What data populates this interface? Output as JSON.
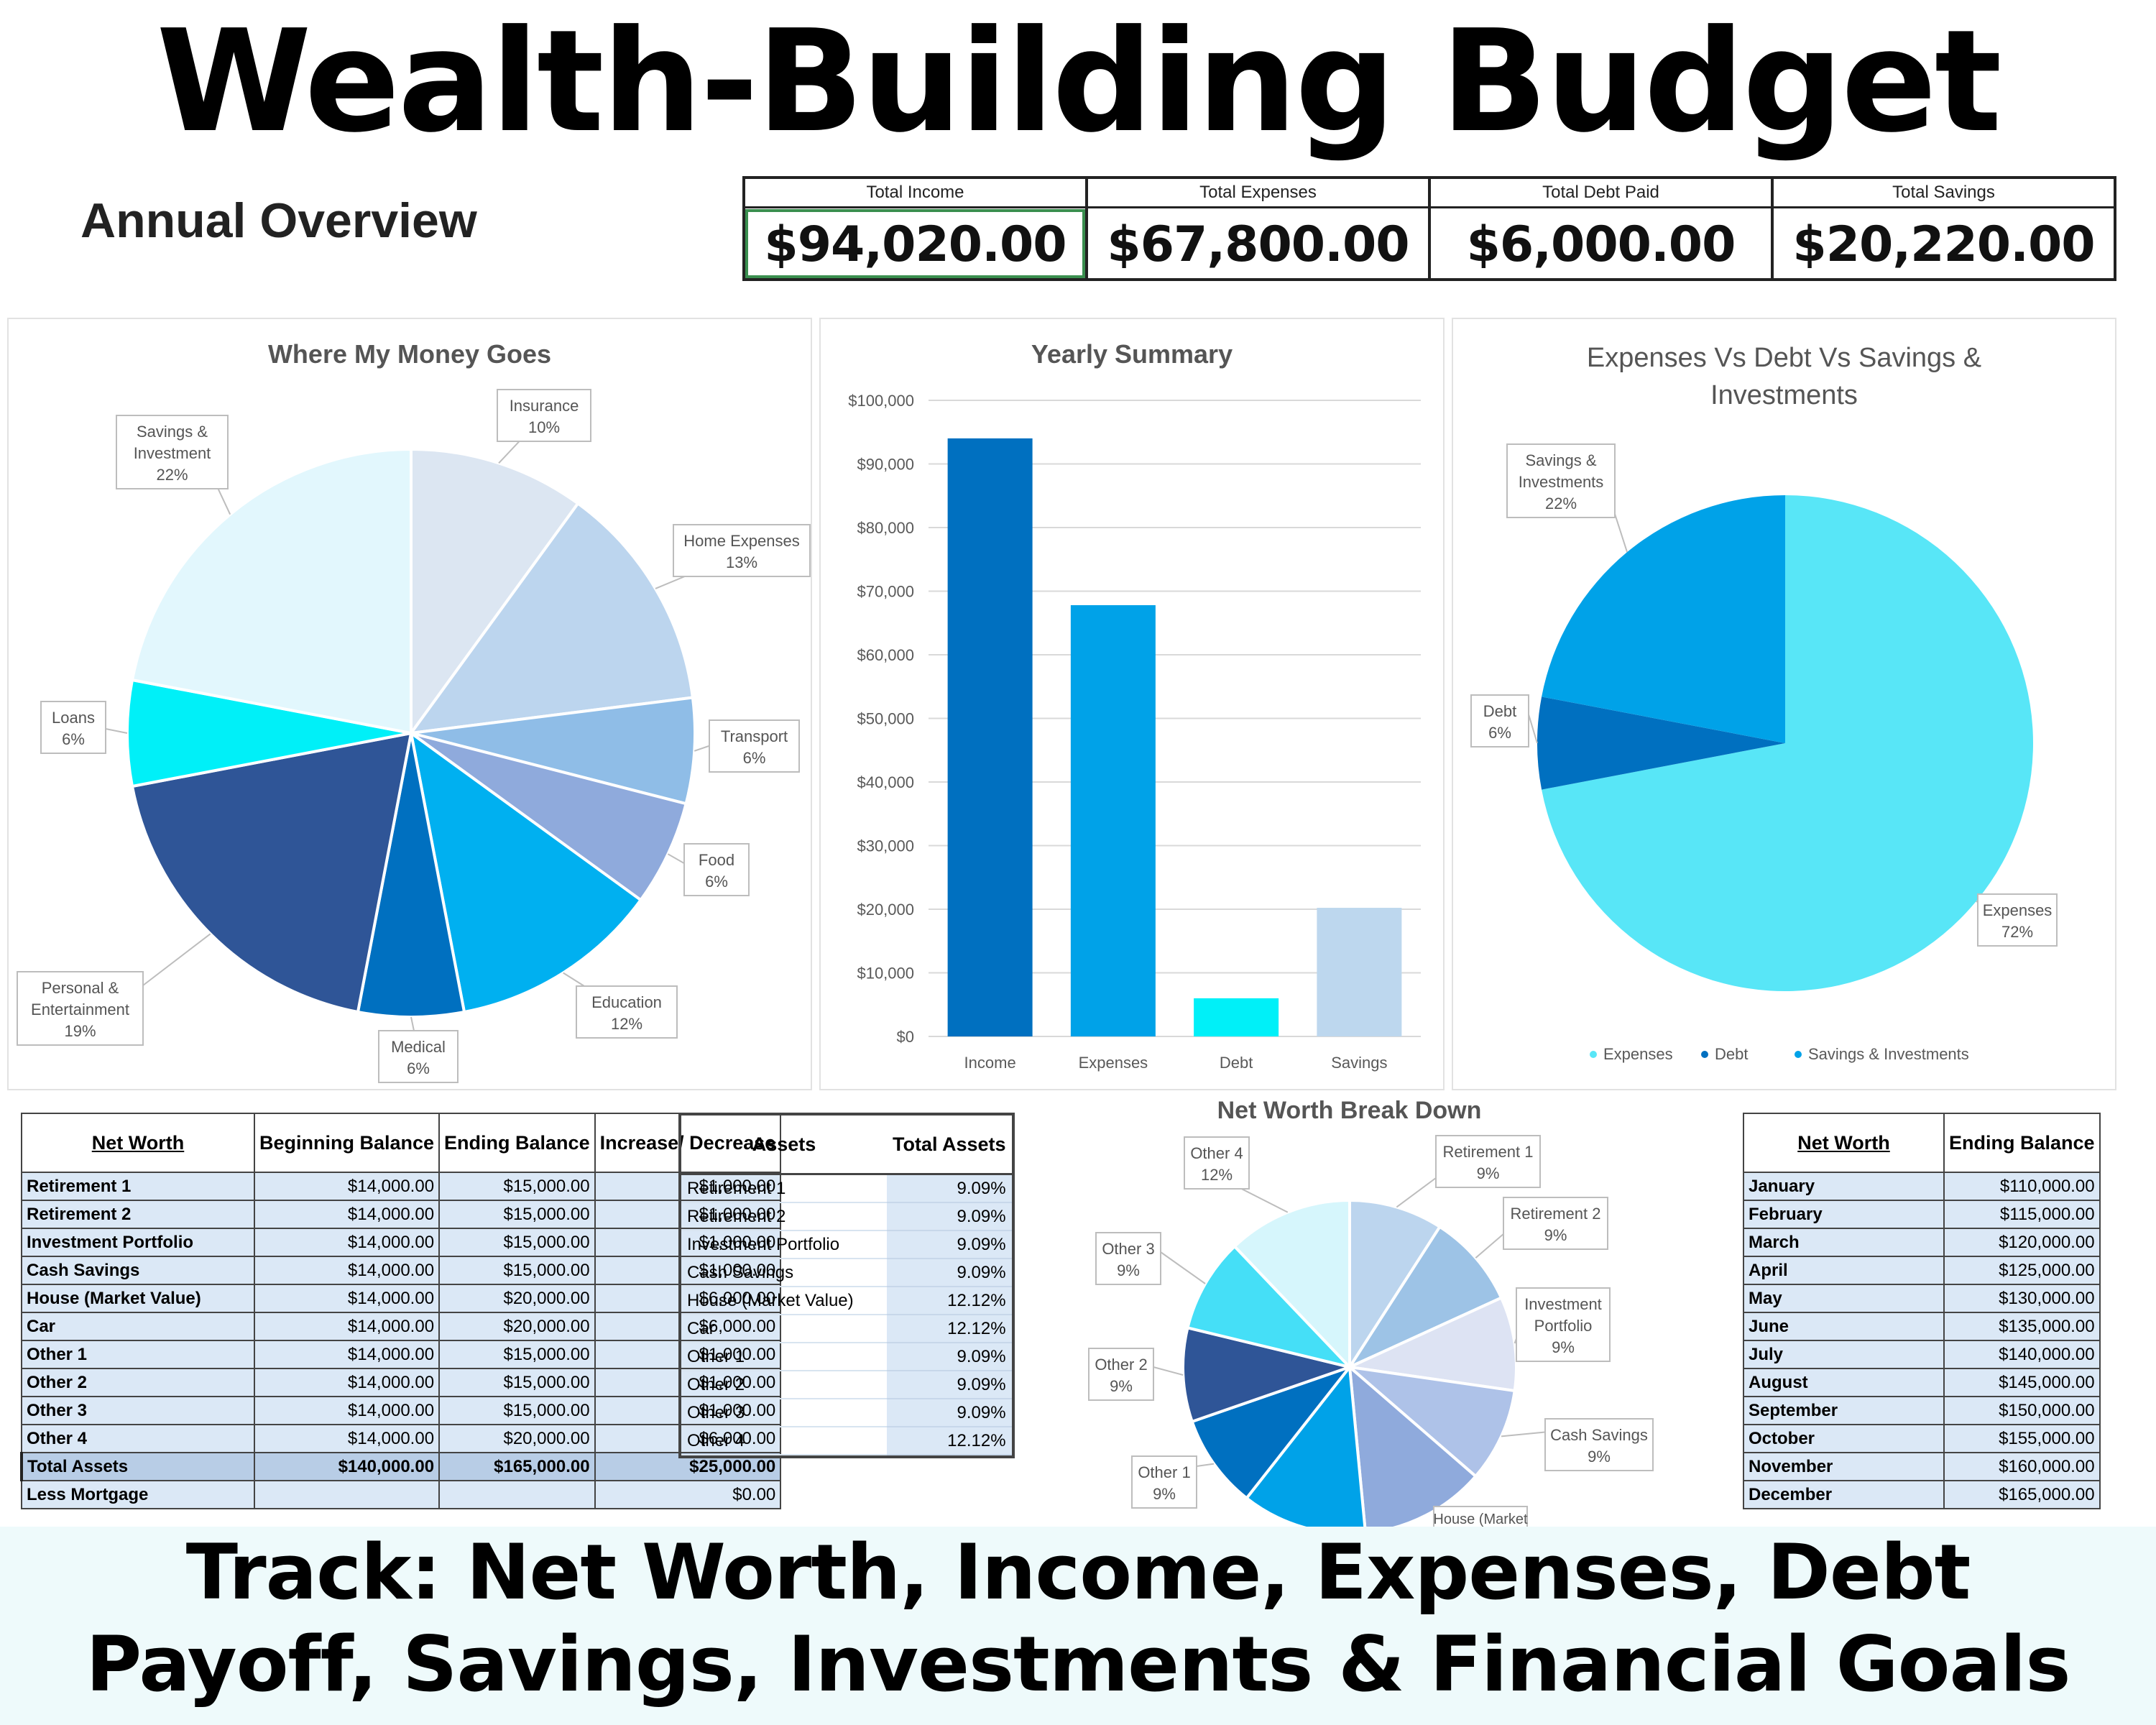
{
  "headline": "Wealth-Building Budget",
  "overview_title": "Annual Overview",
  "totals": [
    {
      "label": "Total Income",
      "value": "$94,020.00"
    },
    {
      "label": "Total Expenses",
      "value": "$67,800.00"
    },
    {
      "label": "Total Debt Paid",
      "value": "$6,000.00"
    },
    {
      "label": "Total Savings",
      "value": "$20,220.00"
    }
  ],
  "chart_data": [
    {
      "type": "pie",
      "title": "Where My Money Goes",
      "slices": [
        {
          "label": "Insurance",
          "value": 10,
          "display": "10%",
          "color": "#dce6f2"
        },
        {
          "label": "Home Expenses",
          "value": 13,
          "display": "13%",
          "color": "#bcd5ee"
        },
        {
          "label": "Transport",
          "value": 6,
          "display": "6%",
          "color": "#8fbde7"
        },
        {
          "label": "Food",
          "value": 6,
          "display": "6%",
          "color": "#8faadc"
        },
        {
          "label": "Education",
          "value": 12,
          "display": "12%",
          "color": "#00b0f0"
        },
        {
          "label": "Medical",
          "value": 6,
          "display": "6%",
          "color": "#0070c0"
        },
        {
          "label": "Personal & Entertainment",
          "value": 19,
          "display": "19%",
          "color": "#2f5597"
        },
        {
          "label": "Loans",
          "value": 6,
          "display": "6%",
          "color": "#00f0f8"
        },
        {
          "label": "Savings & Investment",
          "value": 22,
          "display": "22%",
          "color": "#e2f7fd"
        }
      ]
    },
    {
      "type": "bar",
      "title": "Yearly Summary",
      "categories": [
        "Income",
        "Expenses",
        "Debt",
        "Savings"
      ],
      "values": [
        94020,
        67800,
        6000,
        20220
      ],
      "colors": [
        "#0070c0",
        "#00a2e8",
        "#00f0f8",
        "#bdd7ee"
      ],
      "ylim": [
        0,
        100000
      ],
      "yticks": [
        "$0",
        "$10,000",
        "$20,000",
        "$30,000",
        "$40,000",
        "$50,000",
        "$60,000",
        "$70,000",
        "$80,000",
        "$90,000",
        "$100,000"
      ]
    },
    {
      "type": "pie",
      "title": "Expenses Vs Debt Vs Savings & Investments",
      "slices": [
        {
          "label": "Expenses",
          "value": 72,
          "display": "72%",
          "color": "#58e6f7"
        },
        {
          "label": "Debt",
          "value": 6,
          "display": "6%",
          "color": "#0070c0"
        },
        {
          "label": "Savings & Investments",
          "value": 22,
          "display": "22%",
          "color": "#00a2e8"
        }
      ],
      "legend": [
        "Expenses",
        "Debt",
        "Savings & Investments"
      ],
      "legend_position": "bottom"
    },
    {
      "type": "pie",
      "title": "Net Worth Break Down",
      "slices": [
        {
          "label": "Retirement 1",
          "value": 9.09,
          "display": "9%",
          "color": "#bcd5ee"
        },
        {
          "label": "Retirement 2",
          "value": 9.09,
          "display": "9%",
          "color": "#9dc3e6"
        },
        {
          "label": "Investment Portfolio",
          "value": 9.09,
          "display": "9%",
          "color": "#dde3f3"
        },
        {
          "label": "Cash Savings",
          "value": 9.09,
          "display": "9%",
          "color": "#aec2e8"
        },
        {
          "label": "House (Market Value)",
          "value": 12.12,
          "display": "",
          "color": "#8faadc"
        },
        {
          "label": "Car",
          "value": 12.12,
          "display": "",
          "color": "#00a2e8"
        },
        {
          "label": "Other 1",
          "value": 9.09,
          "display": "9%",
          "color": "#0070c0"
        },
        {
          "label": "Other 2",
          "value": 9.09,
          "display": "9%",
          "color": "#2f5597"
        },
        {
          "label": "Other 3",
          "value": 9.09,
          "display": "9%",
          "color": "#45dff7"
        },
        {
          "label": "Other 4",
          "value": 12.12,
          "display": "12%",
          "color": "#d6f6fc"
        }
      ]
    }
  ],
  "networth_table": {
    "headers": [
      "Net Worth",
      "Beginning Balance",
      "Ending Balance",
      "Increase/ Decrease"
    ],
    "rows": [
      [
        "Retirement 1",
        "$14,000.00",
        "$15,000.00",
        "$1,000.00"
      ],
      [
        "Retirement 2",
        "$14,000.00",
        "$15,000.00",
        "$1,000.00"
      ],
      [
        "Investment Portfolio",
        "$14,000.00",
        "$15,000.00",
        "$1,000.00"
      ],
      [
        "Cash Savings",
        "$14,000.00",
        "$15,000.00",
        "$1,000.00"
      ],
      [
        "House (Market Value)",
        "$14,000.00",
        "$20,000.00",
        "$6,000.00"
      ],
      [
        "Car",
        "$14,000.00",
        "$20,000.00",
        "$6,000.00"
      ],
      [
        "Other 1",
        "$14,000.00",
        "$15,000.00",
        "$1,000.00"
      ],
      [
        "Other 2",
        "$14,000.00",
        "$15,000.00",
        "$1,000.00"
      ],
      [
        "Other 3",
        "$14,000.00",
        "$15,000.00",
        "$1,000.00"
      ],
      [
        "Other 4",
        "$14,000.00",
        "$20,000.00",
        "$6,000.00"
      ],
      [
        "Total Assets",
        "$140,000.00",
        "$165,000.00",
        "$25,000.00"
      ],
      [
        "Less Mortgage",
        "",
        "",
        "$0.00"
      ]
    ]
  },
  "assets_table": {
    "headers": [
      "Assets",
      "Total Assets"
    ],
    "rows": [
      [
        "Retirement 1",
        "9.09%"
      ],
      [
        "Retirement 2",
        "9.09%"
      ],
      [
        "Investment Portfolio",
        "9.09%"
      ],
      [
        "Cash Savings",
        "9.09%"
      ],
      [
        "House (Market Value)",
        "12.12%"
      ],
      [
        "Car",
        "12.12%"
      ],
      [
        "Other 1",
        "9.09%"
      ],
      [
        "Other 2",
        "9.09%"
      ],
      [
        "Other 3",
        "9.09%"
      ],
      [
        "Other 4",
        "12.12%"
      ]
    ]
  },
  "monthly_table": {
    "headers": [
      "Net Worth",
      "Ending Balance"
    ],
    "rows": [
      [
        "January",
        "$110,000.00"
      ],
      [
        "February",
        "$115,000.00"
      ],
      [
        "March",
        "$120,000.00"
      ],
      [
        "April",
        "$125,000.00"
      ],
      [
        "May",
        "$130,000.00"
      ],
      [
        "June",
        "$135,000.00"
      ],
      [
        "July",
        "$140,000.00"
      ],
      [
        "August",
        "$145,000.00"
      ],
      [
        "September",
        "$150,000.00"
      ],
      [
        "October",
        "$155,000.00"
      ],
      [
        "November",
        "$160,000.00"
      ],
      [
        "December",
        "$165,000.00"
      ]
    ]
  },
  "house_callout_partial": "House (Market",
  "banner": {
    "line1": "Track: Net Worth, Income, Expenses, Debt",
    "line2": "Payoff, Savings, Investments & Financial Goals"
  }
}
